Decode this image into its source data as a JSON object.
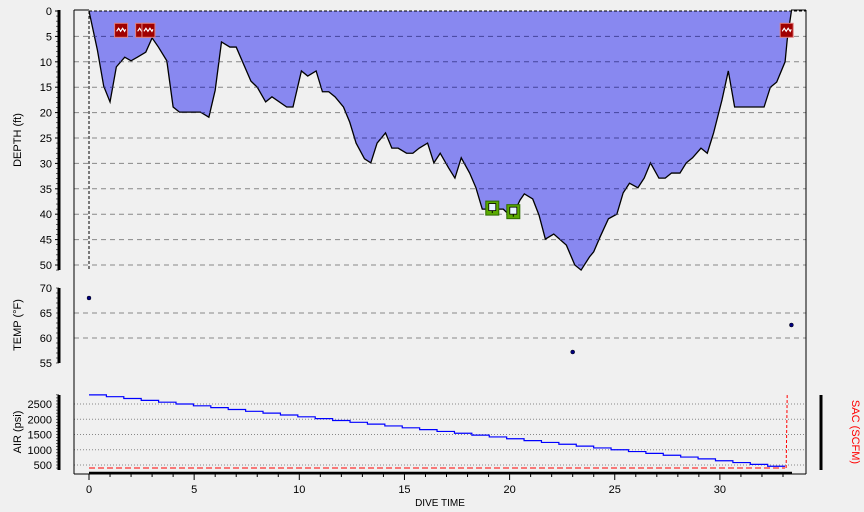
{
  "chart_data": [
    {
      "type": "area",
      "ylabel": "DEPTH (ft)",
      "xlabel": "DIVE TIME",
      "xlim": [
        0,
        33.4
      ],
      "ylim": [
        0,
        50
      ],
      "y_inverted": true,
      "yticks": [
        "0",
        "5",
        "10",
        "15",
        "20",
        "25",
        "30",
        "35",
        "40",
        "45",
        "50"
      ],
      "xticks": [
        "0",
        "5",
        "10",
        "15",
        "20",
        "25",
        "30"
      ],
      "grid": true,
      "fill_color": "#8888f0",
      "points": [
        [
          0,
          0
        ],
        [
          0.4,
          7.7
        ],
        [
          0.7,
          14.8
        ],
        [
          1.0,
          17.9
        ],
        [
          1.3,
          11.0
        ],
        [
          1.7,
          9.1
        ],
        [
          2.0,
          9.8
        ],
        [
          2.3,
          9.1
        ],
        [
          2.7,
          8.1
        ],
        [
          3.0,
          5.3
        ],
        [
          3.3,
          7.1
        ],
        [
          3.7,
          9.8
        ],
        [
          4.0,
          18.9
        ],
        [
          4.3,
          19.9
        ],
        [
          5.3,
          19.9
        ],
        [
          5.7,
          20.9
        ],
        [
          6.0,
          15.6
        ],
        [
          6.3,
          6.1
        ],
        [
          6.7,
          7.1
        ],
        [
          7.0,
          7.1
        ],
        [
          7.3,
          10.0
        ],
        [
          7.7,
          13.8
        ],
        [
          8.0,
          15.0
        ],
        [
          8.4,
          17.9
        ],
        [
          8.7,
          16.9
        ],
        [
          9.4,
          18.9
        ],
        [
          9.7,
          18.9
        ],
        [
          10.1,
          11.8
        ],
        [
          10.4,
          12.8
        ],
        [
          10.8,
          11.8
        ],
        [
          11.1,
          15.9
        ],
        [
          11.4,
          15.9
        ],
        [
          11.7,
          16.9
        ],
        [
          12.1,
          18.9
        ],
        [
          12.4,
          21.9
        ],
        [
          12.7,
          26.0
        ],
        [
          13.1,
          29.1
        ],
        [
          13.4,
          29.9
        ],
        [
          13.7,
          26.0
        ],
        [
          14.1,
          24.0
        ],
        [
          14.4,
          27.0
        ],
        [
          14.7,
          27.0
        ],
        [
          15.1,
          28.0
        ],
        [
          15.4,
          28.0
        ],
        [
          15.7,
          27.0
        ],
        [
          16.1,
          26.0
        ],
        [
          16.4,
          29.9
        ],
        [
          16.7,
          28.0
        ],
        [
          17.1,
          30.9
        ],
        [
          17.4,
          32.9
        ],
        [
          17.7,
          28.9
        ],
        [
          18.1,
          31.9
        ],
        [
          18.4,
          34.8
        ],
        [
          18.7,
          39.0
        ],
        [
          19.1,
          39.0
        ],
        [
          19.7,
          39.0
        ],
        [
          19.9,
          39.8
        ],
        [
          20.2,
          39.8
        ],
        [
          20.5,
          37.2
        ],
        [
          20.7,
          36.0
        ],
        [
          21.1,
          37.0
        ],
        [
          21.4,
          40.2
        ],
        [
          21.7,
          44.9
        ],
        [
          22.1,
          43.9
        ],
        [
          22.7,
          46.1
        ],
        [
          23.1,
          50.0
        ],
        [
          23.4,
          51.0
        ],
        [
          23.8,
          48.4
        ],
        [
          24.0,
          47.4
        ],
        [
          24.3,
          44.5
        ],
        [
          24.7,
          40.9
        ],
        [
          25.1,
          40.0
        ],
        [
          25.4,
          35.8
        ],
        [
          25.7,
          33.9
        ],
        [
          26.1,
          34.8
        ],
        [
          26.4,
          32.9
        ],
        [
          26.7,
          29.9
        ],
        [
          27.1,
          32.9
        ],
        [
          27.4,
          32.9
        ],
        [
          27.7,
          31.9
        ],
        [
          28.1,
          31.9
        ],
        [
          28.4,
          29.9
        ],
        [
          28.7,
          28.9
        ],
        [
          29.1,
          27.0
        ],
        [
          29.4,
          28.0
        ],
        [
          29.7,
          24.0
        ],
        [
          30.1,
          17.5
        ],
        [
          30.4,
          11.8
        ],
        [
          30.7,
          18.9
        ],
        [
          32.1,
          18.9
        ],
        [
          32.4,
          15.0
        ],
        [
          32.7,
          14.0
        ],
        [
          33.1,
          10.0
        ],
        [
          33.2,
          5.7
        ],
        [
          33.4,
          0
        ]
      ],
      "markers": [
        {
          "type": "ascent-warning-icon",
          "time": 1.55,
          "depth": 3.8
        },
        {
          "type": "ascent-warning-icon",
          "time": 2.55,
          "depth": 3.8
        },
        {
          "type": "ascent-warning-icon",
          "time": 2.85,
          "depth": 3.8
        },
        {
          "type": "ascent-warning-icon",
          "time": 33.2,
          "depth": 3.8
        },
        {
          "type": "bookmark-icon",
          "time": 19.2,
          "depth": 38.8
        },
        {
          "type": "bookmark-icon",
          "time": 20.2,
          "depth": 39.5
        }
      ],
      "marker_colors": {
        "warning": "#a00000",
        "bookmark": "#5aaa00"
      }
    },
    {
      "type": "scatter",
      "ylabel": "TEMP (°F)",
      "ylim": [
        55,
        70
      ],
      "yticks": [
        "70",
        "65",
        "60",
        "55"
      ],
      "grid": true,
      "point_color": "#000080",
      "points": [
        [
          0,
          68
        ],
        [
          23.0,
          57.2
        ],
        [
          33.4,
          62.6
        ]
      ]
    },
    {
      "type": "line",
      "ylabel": "AIR (psi)",
      "y2label": "SAC (SCFM)",
      "ylim": [
        400,
        2800
      ],
      "yticks": [
        "2500",
        "2000",
        "1500",
        "1000",
        "500"
      ],
      "grid": true,
      "line_color": "#0000ff",
      "reserve_color": "#ff0000",
      "reserve_psi": 400,
      "sac_marker_time": 33.2,
      "points": [
        [
          0,
          2800
        ],
        [
          33.1,
          400
        ]
      ]
    }
  ]
}
